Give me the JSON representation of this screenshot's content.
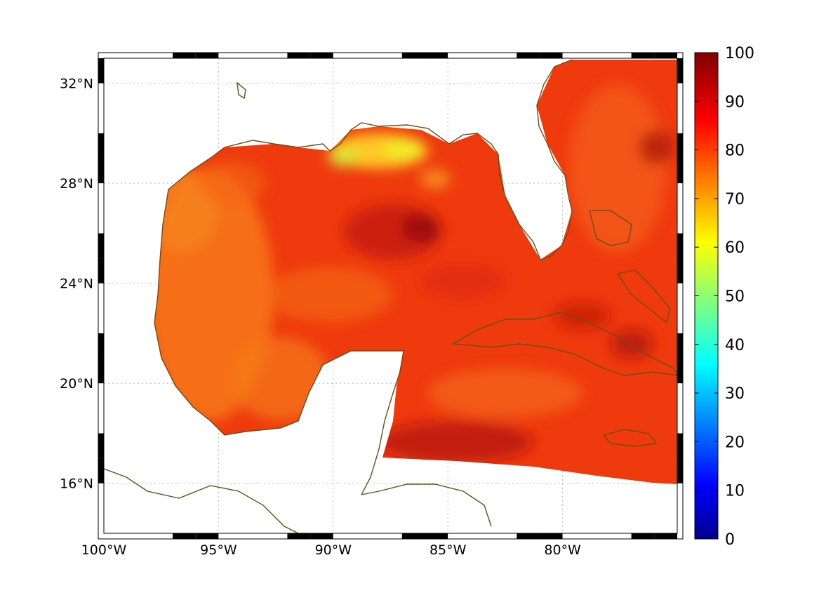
{
  "map": {
    "lon_range": [
      -100,
      -75
    ],
    "lat_range": [
      14,
      33
    ],
    "lon_ticks": [
      {
        "value": -100,
        "label": "100°W"
      },
      {
        "value": -95,
        "label": "95°W"
      },
      {
        "value": -90,
        "label": "90°W"
      },
      {
        "value": -85,
        "label": "85°W"
      },
      {
        "value": -80,
        "label": "80°W"
      }
    ],
    "lat_ticks": [
      {
        "value": 16,
        "label": "16°N"
      },
      {
        "value": 20,
        "label": "20°N"
      },
      {
        "value": 24,
        "label": "24°N"
      },
      {
        "value": 28,
        "label": "28°N"
      },
      {
        "value": 32,
        "label": "32°N"
      }
    ],
    "grid": "dotted",
    "coastline_color": "#6b4e16",
    "field_colormap": "jet"
  },
  "colorbar": {
    "range": [
      0,
      100
    ],
    "ticks": [
      "0",
      "10",
      "20",
      "30",
      "40",
      "50",
      "60",
      "70",
      "80",
      "90",
      "100"
    ]
  },
  "colors": {
    "high": "#e81e0a",
    "mid": "#f56a10",
    "low": "#ffd21a",
    "max": "#a0100a"
  }
}
